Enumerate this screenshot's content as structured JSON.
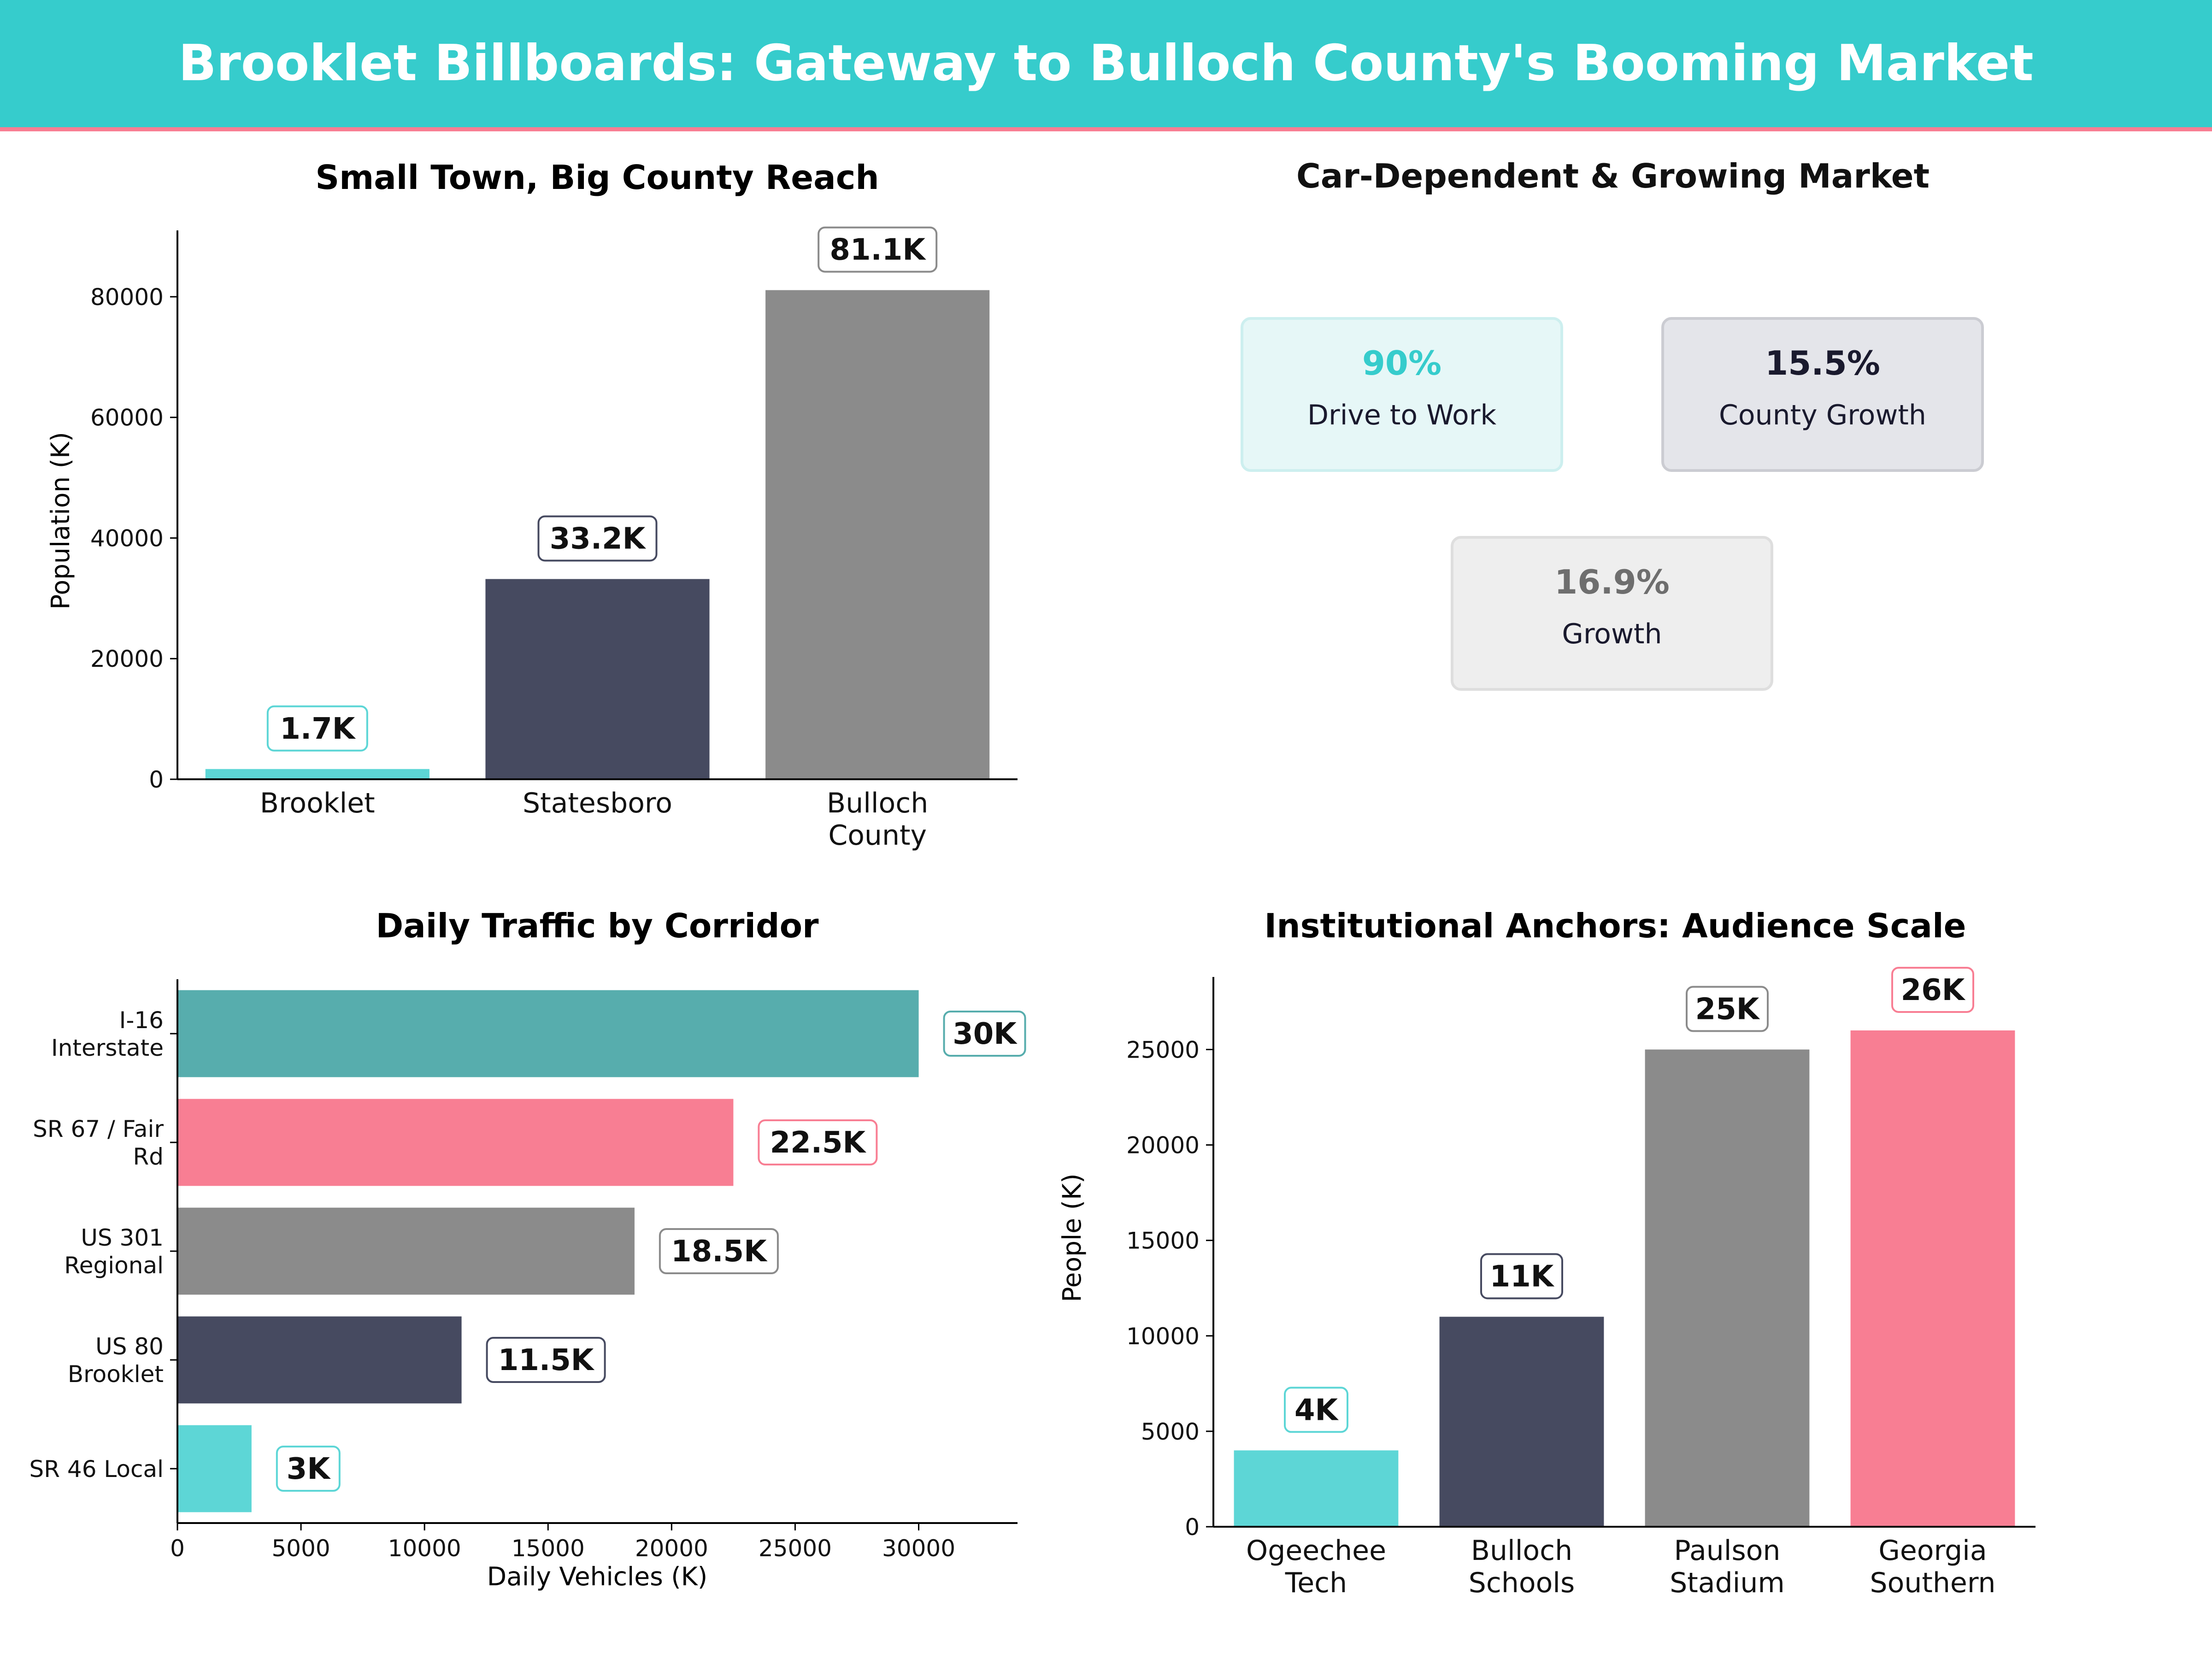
{
  "page": {
    "title": "Brooklet Billboards: Gateway to Bulloch County's Booming Market",
    "banner_color": "#36CCCC",
    "accent_color": "#F87E93"
  },
  "kpi_panel": {
    "title": "Car-Dependent & Growing Market",
    "cards": [
      {
        "value": "90%",
        "label": "Drive to Work",
        "value_color": "#36CCCC",
        "bg": "#E6F7F7",
        "border": "#CDEFEF"
      },
      {
        "value": "15.5%",
        "label": "County Growth",
        "value_color": "#1a1a2e",
        "bg": "#E4E5EA",
        "border": "#CBCCD2"
      },
      {
        "value": "16.9%",
        "label": "Growth",
        "value_color": "#6E6E6E",
        "bg": "#EEEEEE",
        "border": "#DEDEDE"
      }
    ]
  },
  "chart_data": [
    {
      "type": "bar",
      "title": "Small Town, Big County Reach",
      "xlabel": "",
      "ylabel": "Population (K)",
      "categories": [
        [
          "Brooklet"
        ],
        [
          "Statesboro"
        ],
        [
          "Bulloch",
          "County"
        ]
      ],
      "values": [
        1700,
        33200,
        81100
      ],
      "data_labels": [
        "1.7K",
        "33.2K",
        "81.1K"
      ],
      "colors": [
        "#5DD6D6",
        "#464A60",
        "#8B8B8B"
      ],
      "ylim": [
        0,
        91000
      ],
      "yticks": [
        0,
        20000,
        40000,
        60000,
        80000
      ],
      "grid": false
    },
    {
      "type": "bar",
      "orientation": "horizontal",
      "title": "Daily Traffic by Corridor",
      "xlabel": "Daily Vehicles (K)",
      "ylabel": "",
      "categories": [
        [
          "I-16",
          "Interstate"
        ],
        [
          "SR 67 / Fair",
          "Rd"
        ],
        [
          "US 301",
          "Regional"
        ],
        [
          "US 80",
          "Brooklet"
        ],
        [
          "SR 46 Local"
        ]
      ],
      "values": [
        30000,
        22500,
        18500,
        11500,
        3000
      ],
      "data_labels": [
        "30K",
        "22.5K",
        "18.5K",
        "11.5K",
        "3K"
      ],
      "colors": [
        "#57ADAD",
        "#F87E93",
        "#8B8B8B",
        "#464A60",
        "#5DD6D6"
      ],
      "xlim": [
        0,
        34000
      ],
      "xticks": [
        0,
        5000,
        10000,
        15000,
        20000,
        25000,
        30000
      ],
      "grid": false
    },
    {
      "type": "bar",
      "title": "Institutional Anchors: Audience Scale",
      "xlabel": "",
      "ylabel": "People (K)",
      "categories": [
        [
          "Ogeechee",
          "Tech"
        ],
        [
          "Bulloch",
          "Schools"
        ],
        [
          "Paulson",
          "Stadium"
        ],
        [
          "Georgia",
          "Southern"
        ]
      ],
      "values": [
        4000,
        11000,
        25000,
        26000
      ],
      "data_labels": [
        "4K",
        "11K",
        "25K",
        "26K"
      ],
      "colors": [
        "#5DD6D6",
        "#464A60",
        "#8B8B8B",
        "#F87E93"
      ],
      "ylim": [
        0,
        28800
      ],
      "yticks": [
        0,
        5000,
        10000,
        15000,
        20000,
        25000
      ],
      "grid": false
    }
  ]
}
